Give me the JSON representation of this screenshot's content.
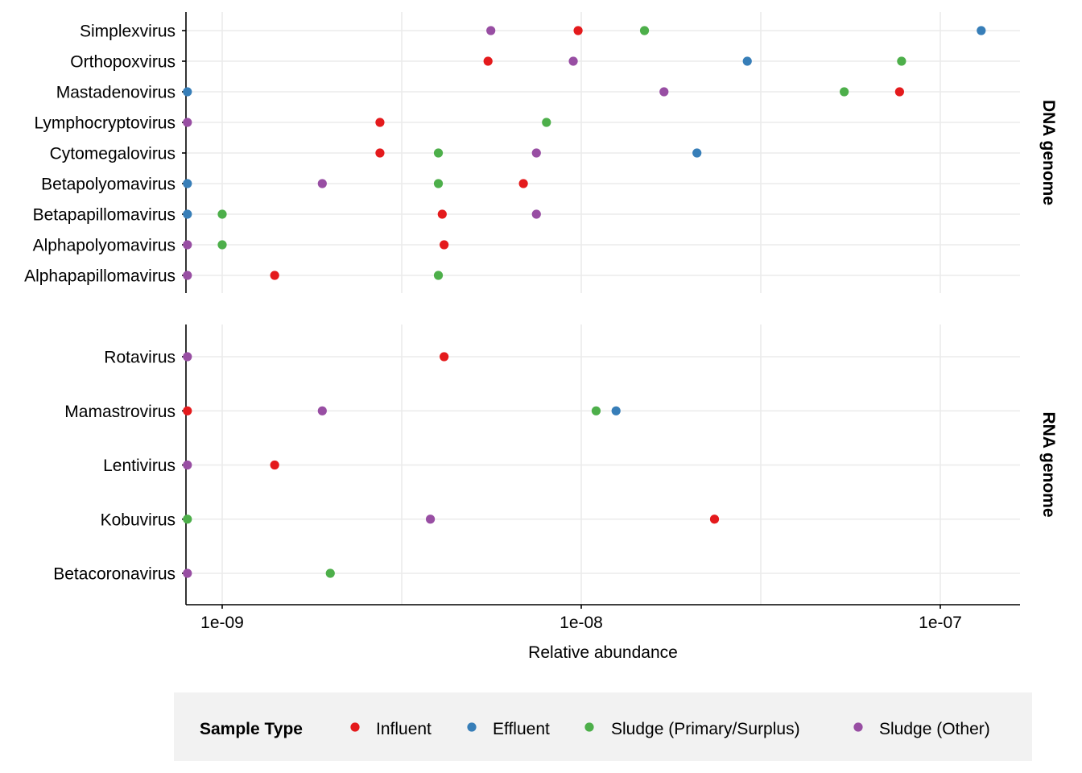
{
  "chart_data": {
    "type": "scatter",
    "x_scale": "log10",
    "xlim": [
      8e-10,
      1.7e-07
    ],
    "x_ticks": [
      1e-09,
      1e-08,
      1e-07
    ],
    "x_tick_labels": [
      "1e-09",
      "1e-08",
      "1e-07"
    ],
    "xlabel": "Relative abundance",
    "grid": true,
    "legend": {
      "title": "Sample Type",
      "position": "bottom",
      "items": [
        {
          "name": "Influent",
          "color": "#e41a1c"
        },
        {
          "name": "Effluent",
          "color": "#377eb8"
        },
        {
          "name": "Sludge (Primary/Surplus)",
          "color": "#4daf4a"
        },
        {
          "name": "Sludge (Other)",
          "color": "#984ea3"
        }
      ]
    },
    "panels": [
      {
        "strip": "DNA genome",
        "categories": [
          "Simplexvirus",
          "Orthopoxvirus",
          "Mastadenovirus",
          "Lymphocryptovirus",
          "Cytomegalovirus",
          "Betapolyomavirus",
          "Betapapillomavirus",
          "Alphapolyomavirus",
          "Alphapapillomavirus"
        ],
        "points": [
          {
            "y": "Simplexvirus",
            "type": "Influent",
            "x": 9.8e-09
          },
          {
            "y": "Simplexvirus",
            "type": "Effluent",
            "x": 1.3e-07
          },
          {
            "y": "Simplexvirus",
            "type": "Sludge (Primary/Surplus)",
            "x": 1.5e-08
          },
          {
            "y": "Simplexvirus",
            "type": "Sludge (Other)",
            "x": 5.6e-09
          },
          {
            "y": "Orthopoxvirus",
            "type": "Influent",
            "x": 5.5e-09
          },
          {
            "y": "Orthopoxvirus",
            "type": "Effluent",
            "x": 2.9e-08
          },
          {
            "y": "Orthopoxvirus",
            "type": "Sludge (Primary/Surplus)",
            "x": 7.8e-08
          },
          {
            "y": "Orthopoxvirus",
            "type": "Sludge (Other)",
            "x": 9.5e-09
          },
          {
            "y": "Mastadenovirus",
            "type": "Influent",
            "x": 7.7e-08
          },
          {
            "y": "Mastadenovirus",
            "type": "Effluent",
            "x": 8e-10
          },
          {
            "y": "Mastadenovirus",
            "type": "Sludge (Primary/Surplus)",
            "x": 5.4e-08
          },
          {
            "y": "Mastadenovirus",
            "type": "Sludge (Other)",
            "x": 1.7e-08
          },
          {
            "y": "Lymphocryptovirus",
            "type": "Influent",
            "x": 2.75e-09
          },
          {
            "y": "Lymphocryptovirus",
            "type": "Sludge (Primary/Surplus)",
            "x": 8e-09
          },
          {
            "y": "Lymphocryptovirus",
            "type": "Sludge (Other)",
            "x": 8e-10
          },
          {
            "y": "Cytomegalovirus",
            "type": "Influent",
            "x": 2.75e-09
          },
          {
            "y": "Cytomegalovirus",
            "type": "Effluent",
            "x": 2.1e-08
          },
          {
            "y": "Cytomegalovirus",
            "type": "Sludge (Primary/Surplus)",
            "x": 4e-09
          },
          {
            "y": "Cytomegalovirus",
            "type": "Sludge (Other)",
            "x": 7.5e-09
          },
          {
            "y": "Betapolyomavirus",
            "type": "Influent",
            "x": 6.9e-09
          },
          {
            "y": "Betapolyomavirus",
            "type": "Effluent",
            "x": 8e-10
          },
          {
            "y": "Betapolyomavirus",
            "type": "Sludge (Primary/Surplus)",
            "x": 4e-09
          },
          {
            "y": "Betapolyomavirus",
            "type": "Sludge (Other)",
            "x": 1.9e-09
          },
          {
            "y": "Betapapillomavirus",
            "type": "Influent",
            "x": 4.1e-09
          },
          {
            "y": "Betapapillomavirus",
            "type": "Effluent",
            "x": 8e-10
          },
          {
            "y": "Betapapillomavirus",
            "type": "Sludge (Primary/Surplus)",
            "x": 1e-09
          },
          {
            "y": "Betapapillomavirus",
            "type": "Sludge (Other)",
            "x": 7.5e-09
          },
          {
            "y": "Alphapolyomavirus",
            "type": "Influent",
            "x": 4.15e-09
          },
          {
            "y": "Alphapolyomavirus",
            "type": "Sludge (Primary/Surplus)",
            "x": 1e-09
          },
          {
            "y": "Alphapolyomavirus",
            "type": "Sludge (Other)",
            "x": 8e-10
          },
          {
            "y": "Alphapapillomavirus",
            "type": "Influent",
            "x": 1.4e-09
          },
          {
            "y": "Alphapapillomavirus",
            "type": "Sludge (Primary/Surplus)",
            "x": 4e-09
          },
          {
            "y": "Alphapapillomavirus",
            "type": "Sludge (Other)",
            "x": 8e-10
          }
        ]
      },
      {
        "strip": "RNA genome",
        "categories": [
          "Rotavirus",
          "Mamastrovirus",
          "Lentivirus",
          "Kobuvirus",
          "Betacoronavirus"
        ],
        "points": [
          {
            "y": "Rotavirus",
            "type": "Influent",
            "x": 4.15e-09
          },
          {
            "y": "Rotavirus",
            "type": "Sludge (Other)",
            "x": 8e-10
          },
          {
            "y": "Mamastrovirus",
            "type": "Influent",
            "x": 8e-10
          },
          {
            "y": "Mamastrovirus",
            "type": "Effluent",
            "x": 1.25e-08
          },
          {
            "y": "Mamastrovirus",
            "type": "Sludge (Primary/Surplus)",
            "x": 1.1e-08
          },
          {
            "y": "Mamastrovirus",
            "type": "Sludge (Other)",
            "x": 1.9e-09
          },
          {
            "y": "Lentivirus",
            "type": "Influent",
            "x": 1.4e-09
          },
          {
            "y": "Lentivirus",
            "type": "Sludge (Other)",
            "x": 8e-10
          },
          {
            "y": "Kobuvirus",
            "type": "Influent",
            "x": 2.35e-08
          },
          {
            "y": "Kobuvirus",
            "type": "Sludge (Primary/Surplus)",
            "x": 8e-10
          },
          {
            "y": "Kobuvirus",
            "type": "Sludge (Other)",
            "x": 3.8e-09
          },
          {
            "y": "Betacoronavirus",
            "type": "Sludge (Primary/Surplus)",
            "x": 2e-09
          },
          {
            "y": "Betacoronavirus",
            "type": "Sludge (Other)",
            "x": 8e-10
          }
        ]
      }
    ]
  }
}
